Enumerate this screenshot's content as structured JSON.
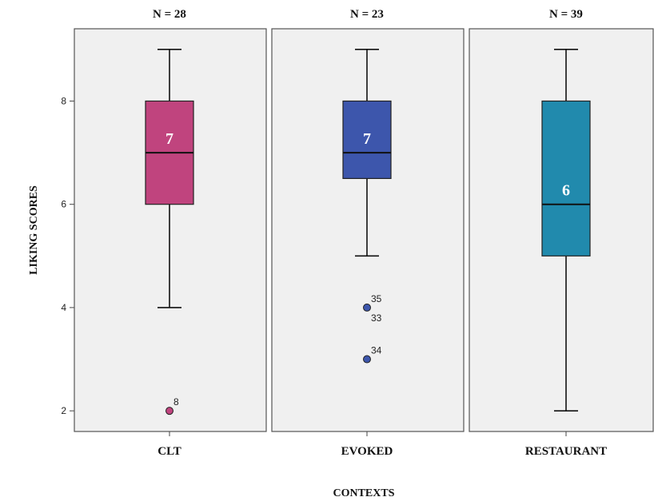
{
  "chart_data": {
    "type": "boxplot",
    "xlabel": "CONTEXTS",
    "ylabel": "LIKING SCORES",
    "ylim": [
      1.6,
      9.4
    ],
    "yticks": [
      2,
      4,
      6,
      8
    ],
    "grid": false,
    "groups": [
      {
        "category": "CLT",
        "n_label": "N = 28",
        "color": "#c0447e",
        "min": 4,
        "q1": 6,
        "median": 7,
        "q3": 8,
        "max": 9,
        "median_label": "7",
        "outliers": [
          {
            "value": 2,
            "label": "8"
          }
        ]
      },
      {
        "category": "EVOKED",
        "n_label": "N = 23",
        "color": "#3d56ac",
        "min": 5,
        "q1": 6.5,
        "median": 7,
        "q3": 8,
        "max": 9,
        "median_label": "7",
        "outliers": [
          {
            "value": 4,
            "label": "35"
          },
          {
            "value": 4,
            "label": "33"
          },
          {
            "value": 3,
            "label": "34"
          }
        ]
      },
      {
        "category": "RESTAURANT",
        "n_label": "N = 39",
        "color": "#218aad",
        "min": 2,
        "q1": 5,
        "median": 6,
        "q3": 8,
        "max": 9,
        "median_label": "6",
        "outliers": []
      }
    ]
  }
}
